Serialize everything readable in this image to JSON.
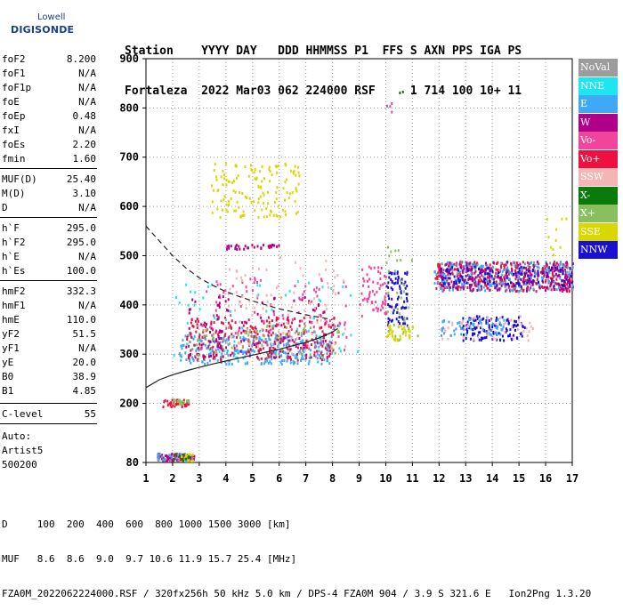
{
  "logo": {
    "line1": "Lowell",
    "line2": "DIGISONDE"
  },
  "header": {
    "labels_line": "Station    YYYY DAY   DDD HHMMSS P1  FFS S AXN PPS IGA PS",
    "values_line": "Fortaleza  2022 Mar03 062 224000 RSF     1 714 100 10+ 11"
  },
  "params": [
    {
      "k": "foF2",
      "v": "8.200"
    },
    {
      "k": "foF1",
      "v": "N/A"
    },
    {
      "k": "foF1p",
      "v": "N/A"
    },
    {
      "k": "foE",
      "v": "N/A"
    },
    {
      "k": "foEp",
      "v": "0.48"
    },
    {
      "k": "fxI",
      "v": "N/A"
    },
    {
      "k": "foEs",
      "v": "2.20"
    },
    {
      "k": "fmin",
      "v": "1.60"
    },
    {
      "k": "MUF(D)",
      "v": "25.40"
    },
    {
      "k": "M(D)",
      "v": "3.10"
    },
    {
      "k": "D",
      "v": "N/A"
    },
    {
      "k": "h`F",
      "v": "295.0"
    },
    {
      "k": "h`F2",
      "v": "295.0"
    },
    {
      "k": "h`E",
      "v": "N/A"
    },
    {
      "k": "h`Es",
      "v": "100.0"
    },
    {
      "k": "hmF2",
      "v": "332.3"
    },
    {
      "k": "hmF1",
      "v": "N/A"
    },
    {
      "k": "hmE",
      "v": "110.0"
    },
    {
      "k": "yF2",
      "v": "51.5"
    },
    {
      "k": "yF1",
      "v": "N/A"
    },
    {
      "k": "yE",
      "v": "20.0"
    },
    {
      "k": "B0",
      "v": "38.9"
    },
    {
      "k": "B1",
      "v": "4.85"
    },
    {
      "k": "C-level",
      "v": "55"
    }
  ],
  "autoscale": {
    "line1": "Auto:",
    "line2": "Artist5",
    "line3": "500200"
  },
  "legend": [
    {
      "label": "NoVal",
      "color": "#9c9c9c"
    },
    {
      "label": "NNE",
      "color": "#1ee6f0"
    },
    {
      "label": "E",
      "color": "#3fa9f5"
    },
    {
      "label": "W",
      "color": "#b0008a"
    },
    {
      "label": "Vo-",
      "color": "#f0459a"
    },
    {
      "label": "Vo+",
      "color": "#f01040"
    },
    {
      "label": "SSW",
      "color": "#f5b5b5"
    },
    {
      "label": "X-",
      "color": "#0a7a0a"
    },
    {
      "label": "X+",
      "color": "#88c060"
    },
    {
      "label": "SSE",
      "color": "#d8d800"
    },
    {
      "label": "NNW",
      "color": "#1a10d0"
    }
  ],
  "footer": {
    "line1": "D     100  200  400  600  800 1000 1500 3000 [km]",
    "line2": "MUF   8.6  8.6  9.0  9.7 10.6 11.9 15.7 25.4 [MHz]",
    "line3": "FZA0M_2022062224000.RSF / 320fx256h 50 kHz 5.0 km / DPS-4 FZA0M 904 / 3.9 S 321.6 E   Ion2Png 1.3.20"
  },
  "chart_data": {
    "type": "scatter",
    "xlim": [
      1,
      17
    ],
    "ylim": [
      80,
      900
    ],
    "xticks": [
      1,
      2,
      3,
      4,
      5,
      6,
      7,
      8,
      9,
      10,
      11,
      12,
      13,
      14,
      15,
      16,
      17
    ],
    "yticks": [
      80,
      200,
      300,
      400,
      500,
      600,
      700,
      800,
      900
    ],
    "grid": true,
    "legend_position": "right",
    "profile_curve": {
      "x": [
        1.0,
        1.5,
        2.0,
        2.5,
        3.0,
        3.5,
        4.0,
        4.5,
        5.0,
        5.5,
        6.0,
        6.5,
        7.0,
        7.5,
        8.0,
        8.2
      ],
      "y": [
        232,
        248,
        258,
        266,
        273,
        280,
        286,
        292,
        298,
        304,
        310,
        317,
        324,
        333,
        345,
        352
      ]
    },
    "dashed_curve": {
      "x": [
        1.0,
        1.5,
        2.0,
        2.5,
        3.0,
        3.5,
        4.0,
        4.5,
        5.0,
        5.5,
        6.0,
        6.5,
        7.0,
        7.5,
        8.0
      ],
      "y": [
        560,
        530,
        500,
        475,
        455,
        440,
        427,
        417,
        408,
        400,
        392,
        386,
        380,
        375,
        370
      ]
    },
    "clusters": [
      {
        "name": "E",
        "color": "#3fa9f5",
        "x": [
          2.2,
          8.0
        ],
        "y": [
          282,
          340
        ],
        "n": 320
      },
      {
        "name": "Vo+",
        "color": "#f01040",
        "x": [
          2.5,
          8.2
        ],
        "y": [
          290,
          380
        ],
        "n": 260
      },
      {
        "name": "W",
        "color": "#b0008a",
        "x": [
          2.4,
          7.8
        ],
        "y": [
          295,
          420
        ],
        "n": 90
      },
      {
        "name": "Vo-",
        "color": "#f0459a",
        "x": [
          3.0,
          8.5
        ],
        "y": [
          310,
          470
        ],
        "n": 110
      },
      {
        "name": "SSE",
        "color": "#d8d800",
        "x": [
          3.4,
          6.8
        ],
        "y": [
          580,
          690
        ],
        "n": 140
      },
      {
        "name": "SSW",
        "color": "#f5b5b5",
        "x": [
          4.0,
          8.5
        ],
        "y": [
          300,
          500
        ],
        "n": 90
      },
      {
        "name": "X+",
        "color": "#88c060",
        "x": [
          2.6,
          8.3
        ],
        "y": [
          300,
          360
        ],
        "n": 60
      },
      {
        "name": "NNE",
        "color": "#1ee6f0",
        "x": [
          2.0,
          9.0
        ],
        "y": [
          290,
          450
        ],
        "n": 60
      },
      {
        "name": "NNW",
        "color": "#1a10d0",
        "x": [
          10.0,
          10.8
        ],
        "y": [
          360,
          470
        ],
        "n": 80
      },
      {
        "name": "Vo+",
        "color": "#f01040",
        "x": [
          11.8,
          17.0
        ],
        "y": [
          430,
          490
        ],
        "n": 380
      },
      {
        "name": "E",
        "color": "#3fa9f5",
        "x": [
          11.8,
          17.0
        ],
        "y": [
          430,
          490
        ],
        "n": 260
      },
      {
        "name": "NNW",
        "color": "#1a10d0",
        "x": [
          12.0,
          17.0
        ],
        "y": [
          440,
          480
        ],
        "n": 140
      },
      {
        "name": "W",
        "color": "#b0008a",
        "x": [
          12.0,
          17.0
        ],
        "y": [
          430,
          490
        ],
        "n": 140
      },
      {
        "name": "NNW",
        "color": "#1a10d0",
        "x": [
          12.8,
          15.2
        ],
        "y": [
          330,
          380
        ],
        "n": 120
      },
      {
        "name": "SSW",
        "color": "#f5b5b5",
        "x": [
          12.0,
          15.5
        ],
        "y": [
          330,
          380
        ],
        "n": 60
      },
      {
        "name": "E",
        "color": "#3fa9f5",
        "x": [
          12.0,
          14.5
        ],
        "y": [
          340,
          375
        ],
        "n": 50
      },
      {
        "name": "SSE",
        "color": "#d8d800",
        "x": [
          10.0,
          11.0
        ],
        "y": [
          330,
          360
        ],
        "n": 40
      },
      {
        "name": "Vo+",
        "color": "#f01040",
        "x": [
          1.6,
          2.6
        ],
        "y": [
          195,
          210
        ],
        "n": 40
      },
      {
        "name": "X+",
        "color": "#88c060",
        "x": [
          2.0,
          2.6
        ],
        "y": [
          200,
          210
        ],
        "n": 20
      },
      {
        "name": "Vo+",
        "color": "#f01040",
        "x": [
          1.4,
          2.8
        ],
        "y": [
          85,
          100
        ],
        "n": 60
      },
      {
        "name": "W",
        "color": "#b0008a",
        "x": [
          1.4,
          2.8
        ],
        "y": [
          85,
          100
        ],
        "n": 40
      },
      {
        "name": "E",
        "color": "#3fa9f5",
        "x": [
          1.4,
          2.8
        ],
        "y": [
          85,
          100
        ],
        "n": 30
      },
      {
        "name": "SSE",
        "color": "#d8d800",
        "x": [
          2.2,
          2.8
        ],
        "y": [
          85,
          100
        ],
        "n": 20
      },
      {
        "name": "X-",
        "color": "#0a7a0a",
        "x": [
          2.0,
          2.6
        ],
        "y": [
          86,
          100
        ],
        "n": 12
      },
      {
        "name": "W",
        "color": "#b0008a",
        "x": [
          4.0,
          6.0
        ],
        "y": [
          515,
          525
        ],
        "n": 30
      },
      {
        "name": "W",
        "color": "#b0008a",
        "x": [
          3.6,
          3.8
        ],
        "y": [
          300,
          420
        ],
        "n": 20
      },
      {
        "name": "Vo-",
        "color": "#f0459a",
        "x": [
          9.0,
          10.0
        ],
        "y": [
          380,
          480
        ],
        "n": 60
      },
      {
        "name": "X+",
        "color": "#88c060",
        "x": [
          10.0,
          11.2
        ],
        "y": [
          330,
          520
        ],
        "n": 30
      },
      {
        "name": "SSE",
        "color": "#d8d800",
        "x": [
          16.0,
          17.0
        ],
        "y": [
          500,
          580
        ],
        "n": 10
      },
      {
        "name": "X-",
        "color": "#0a7a0a",
        "x": [
          10.5,
          10.7
        ],
        "y": [
          830,
          840
        ],
        "n": 2
      },
      {
        "name": "Vo-",
        "color": "#f0459a",
        "x": [
          10.0,
          10.2
        ],
        "y": [
          790,
          820
        ],
        "n": 4
      }
    ]
  }
}
